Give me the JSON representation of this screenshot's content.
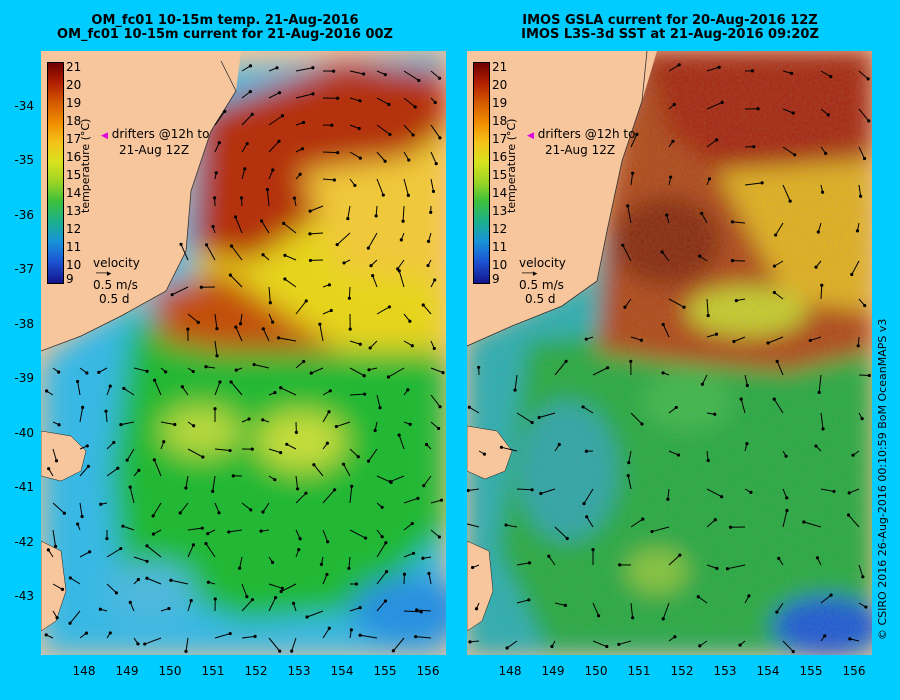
{
  "left_panel": {
    "title_line1": "OM_fc01 10-15m temp. 21-Aug-2016",
    "title_line2": "OM_fc01 10-15m current for 21-Aug-2016 00Z"
  },
  "right_panel": {
    "title_line1": "IMOS GSLA current for 20-Aug-2016 12Z",
    "title_line2": "IMOS L3S-3d SST at 21-Aug-2016 09:20Z"
  },
  "latitude_ticks": [
    "-34",
    "-35",
    "-36",
    "-37",
    "-38",
    "-39",
    "-40",
    "-41",
    "-42",
    "-43"
  ],
  "longitude_ticks": [
    "148",
    "149",
    "150",
    "151",
    "152",
    "153",
    "154",
    "155",
    "156"
  ],
  "colorbar": {
    "ticks": [
      "21",
      "20",
      "19",
      "18",
      "17",
      "16",
      "15",
      "14",
      "13",
      "12",
      "11",
      "10",
      "9"
    ],
    "unit": "temperature (°C)"
  },
  "drifters": {
    "marker": "◀",
    "line1": "drifters @12h to",
    "line2": "21-Aug 12Z"
  },
  "velocity": {
    "line1": "velocity",
    "line2": "0.5 m/s",
    "line3": "0.5 d"
  },
  "copyright": "© CSIRO 2016   26-Aug-2016 00:10:59 BoM OceanMAPS v3",
  "colors": {
    "background": "#00ccff",
    "land": "#f8c69c",
    "warm": "#b02800",
    "cool": "#1fae3a"
  }
}
